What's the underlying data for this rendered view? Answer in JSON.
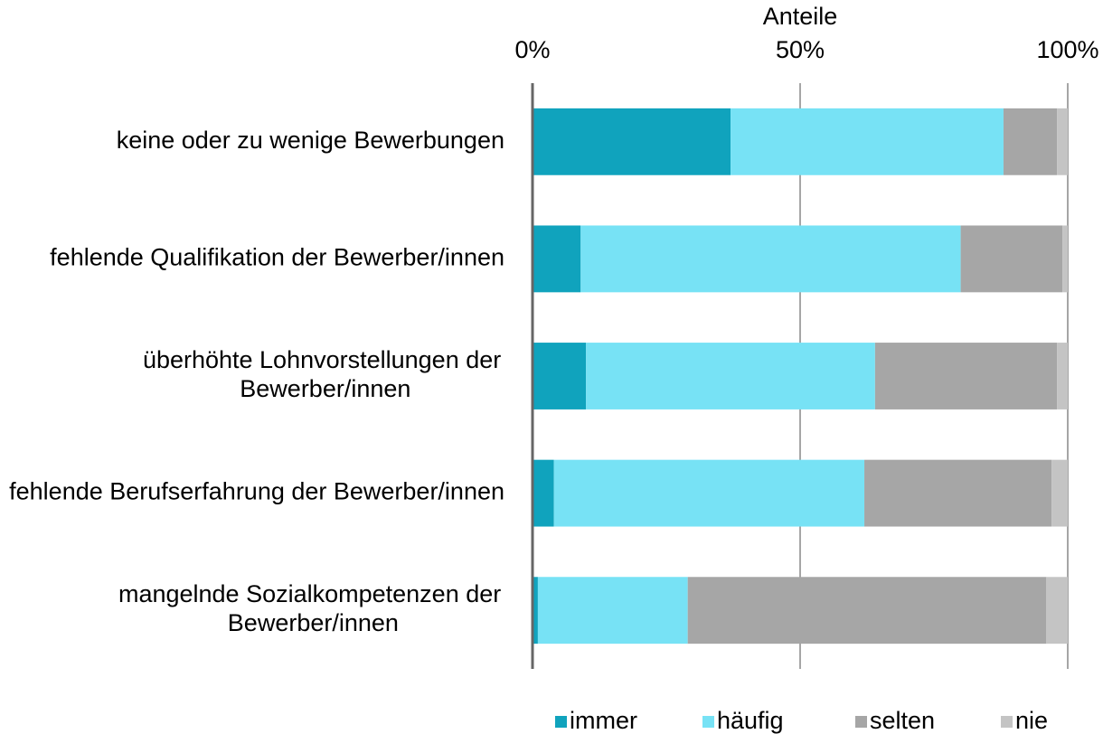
{
  "chart_data": {
    "type": "stacked_barh",
    "x_label": "Anteile",
    "categories": [
      "keine oder zu wenige Bewerbungen",
      "fehlende Qualifikation der Bewerber/innen",
      "überhöhte Lohnvorstellungen der Bewerber/innen",
      "fehlende Berufserfahrung der Bewerber/innen",
      "mangelnde Sozialkompetenzen der Bewerber/innen"
    ],
    "series": [
      {
        "name": "immer",
        "color": "#10a3bd",
        "values": [
          37,
          9,
          10,
          4,
          1
        ]
      },
      {
        "name": "häufig",
        "color": "#77e2f5",
        "values": [
          51,
          71,
          54,
          58,
          28
        ]
      },
      {
        "name": "selten",
        "color": "#a6a6a6",
        "values": [
          10,
          19,
          34,
          35,
          67
        ]
      },
      {
        "name": "nie",
        "color": "#c4c4c4",
        "values": [
          2,
          1,
          2,
          3,
          4
        ]
      }
    ],
    "xlim": [
      0,
      100
    ],
    "xticks": [
      {
        "value": 0,
        "label": "0%"
      },
      {
        "value": 50,
        "label": "50%"
      },
      {
        "value": 100,
        "label": "100%"
      }
    ],
    "grid": true,
    "legend": "bottom"
  }
}
